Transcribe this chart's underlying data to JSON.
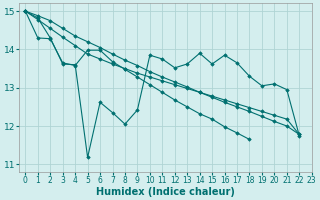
{
  "title": "",
  "xlabel": "Humidex (Indice chaleur)",
  "ylabel": "",
  "bg_color": "#d4eeee",
  "grid_color": "#afd4d4",
  "line_color": "#007070",
  "marker_color": "#007070",
  "xlim": [
    -0.5,
    23
  ],
  "ylim": [
    10.8,
    15.2
  ],
  "xticks": [
    0,
    1,
    2,
    3,
    4,
    5,
    6,
    7,
    8,
    9,
    10,
    11,
    12,
    13,
    14,
    15,
    16,
    17,
    18,
    19,
    20,
    21,
    22,
    23
  ],
  "yticks": [
    11,
    12,
    13,
    14,
    15
  ],
  "series": [
    {
      "x": [
        0,
        1,
        2,
        3,
        4,
        5,
        6,
        7,
        8,
        9,
        10,
        11,
        12,
        13,
        14,
        15,
        16,
        17,
        18,
        19,
        20,
        21,
        22
      ],
      "y": [
        15.0,
        14.82,
        14.3,
        13.62,
        13.6,
        11.18,
        12.62,
        12.35,
        12.05,
        12.42,
        13.85,
        13.75,
        13.52,
        13.62,
        13.9,
        13.62,
        13.85,
        13.65,
        13.3,
        13.05,
        13.1,
        12.95,
        11.75
      ]
    },
    {
      "x": [
        0,
        1,
        2,
        3,
        4,
        5,
        6,
        7,
        8,
        9,
        10,
        11,
        12,
        13,
        14,
        15,
        16,
        17,
        18
      ],
      "y": [
        15.0,
        14.3,
        14.28,
        13.65,
        13.58,
        13.98,
        13.98,
        13.68,
        13.48,
        13.28,
        13.08,
        12.88,
        12.68,
        12.5,
        12.32,
        12.18,
        11.98,
        11.82,
        11.65
      ]
    },
    {
      "x": [
        0,
        1,
        2,
        3,
        4,
        5,
        6,
        7,
        8,
        9,
        10,
        11,
        12,
        13,
        14,
        15,
        16,
        17,
        18,
        19,
        20,
        21,
        22
      ],
      "y": [
        15.0,
        14.78,
        14.55,
        14.32,
        14.1,
        13.88,
        13.75,
        13.62,
        13.5,
        13.38,
        13.28,
        13.18,
        13.08,
        12.98,
        12.88,
        12.78,
        12.68,
        12.58,
        12.48,
        12.38,
        12.28,
        12.18,
        11.78
      ]
    },
    {
      "x": [
        0,
        1,
        2,
        3,
        4,
        5,
        6,
        7,
        8,
        9,
        10,
        11,
        12,
        13,
        14,
        15,
        16,
        17,
        18,
        19,
        20,
        21,
        22
      ],
      "y": [
        15.0,
        14.88,
        14.75,
        14.55,
        14.35,
        14.2,
        14.05,
        13.88,
        13.72,
        13.58,
        13.42,
        13.28,
        13.15,
        13.02,
        12.88,
        12.75,
        12.62,
        12.5,
        12.38,
        12.25,
        12.12,
        12.0,
        11.78
      ]
    }
  ],
  "xlabel_fontsize": 7,
  "tick_fontsize": 5.5,
  "ytick_fontsize": 6.5
}
